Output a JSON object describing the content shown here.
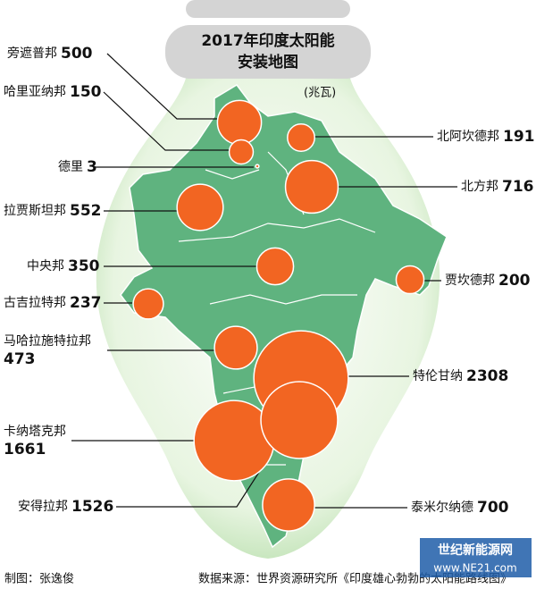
{
  "chart_data": {
    "type": "bubble_map",
    "title": [
      "2017年印度太阳能",
      "安装地图"
    ],
    "unit": "(兆瓦)",
    "categories": [
      "旁遮普邦",
      "哈里亚纳邦",
      "德里",
      "拉贾斯坦邦",
      "中央邦",
      "古吉拉特邦",
      "马哈拉施特拉邦",
      "卡纳塔克邦",
      "安得拉邦",
      "泰米尔纳德",
      "特伦甘纳",
      "贾坎德邦",
      "北方邦",
      "北阿坎德邦"
    ],
    "values": [
      500,
      150,
      3,
      552,
      350,
      237,
      473,
      1661,
      1526,
      700,
      2308,
      200,
      716,
      191
    ],
    "color": "#f26522",
    "credit": "制图：张逸俊",
    "source": "数据来源：世界资源研究所《印度雄心勃勃的太阳能路线图》",
    "watermark": [
      "世纪新能源网",
      "www.NE21.com"
    ]
  }
}
